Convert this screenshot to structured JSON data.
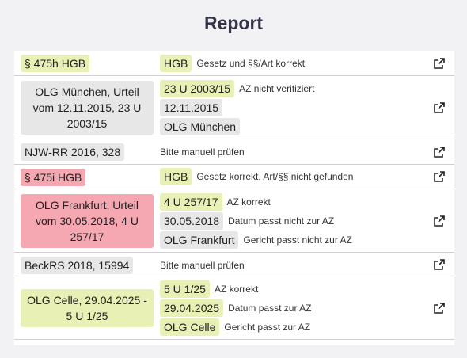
{
  "title": "Report",
  "rows": [
    {
      "left": "§ 475h HGB",
      "lines": [
        {
          "tag": "HGB",
          "note": "Gesetz und §§/Art korrekt"
        }
      ]
    },
    {
      "left": "OLG München, Urteil vom 12.11.2015, 23 U 2003/15",
      "lines": [
        {
          "tag": "23 U 2003/15",
          "note": "AZ nicht verifiziert"
        },
        {
          "tag": "12.11.2015",
          "note": ""
        },
        {
          "tag": "OLG München",
          "note": ""
        }
      ]
    },
    {
      "left": "NJW-RR 2016, 328",
      "plain": "Bitte manuell prüfen"
    },
    {
      "left": "§ 475i HGB",
      "lines": [
        {
          "tag": "HGB",
          "note": "Gesetz korrekt, Art/§§ nicht gefunden"
        }
      ]
    },
    {
      "left": "OLG Frankfurt, Urteil vom 30.05.2018, 4 U 257/17",
      "lines": [
        {
          "tag": "4 U 257/17",
          "note": "AZ korrekt"
        },
        {
          "tag": "30.05.2018",
          "note": "Datum passt nicht zur AZ"
        },
        {
          "tag": "OLG Frankfurt",
          "note": "Gericht passt nicht zur AZ"
        }
      ]
    },
    {
      "left": "BeckRS 2018, 15994",
      "plain": "Bitte manuell prüfen"
    },
    {
      "left": "OLG Celle, 29.04.2025 - 5 U 1/25",
      "lines": [
        {
          "tag": "5 U 1/25",
          "note": "AZ korrekt"
        },
        {
          "tag": "29.04.2025",
          "note": "Datum passt zur AZ"
        },
        {
          "tag": "OLG Celle",
          "note": "Gericht passt zur AZ"
        }
      ]
    }
  ],
  "colors": {
    "ok": "#e9f0b5",
    "neutral": "#e7e7e7",
    "error": "#f5a7b2"
  },
  "icon": "external-link-icon"
}
